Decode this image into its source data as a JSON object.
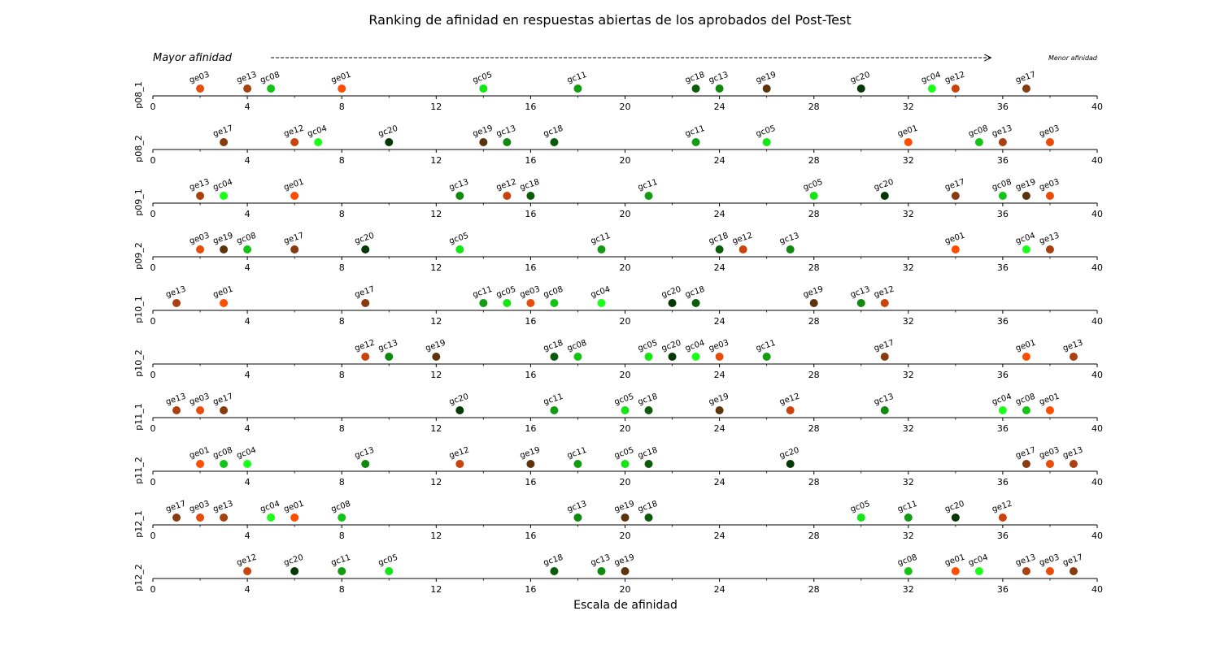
{
  "chart_data": {
    "type": "scatter",
    "title": "Ranking de afinidad en respuestas abiertas de los aprobados del Post-Test",
    "xlabel": "Escala de afinidad",
    "xlim": [
      0,
      40
    ],
    "xticks": [
      0,
      4,
      8,
      12,
      16,
      20,
      24,
      28,
      32,
      36,
      40
    ],
    "arrow": {
      "start_label": "Mayor afinidad",
      "end_label": "Menor afinidad",
      "x_start": 5,
      "x_end": 35.5
    },
    "colors": {
      "ge01": "#ff4d00",
      "ge03": "#e84c0a",
      "ge12": "#c8440c",
      "ge13": "#a8400f",
      "ge17": "#873c10",
      "ge19": "#5c330b",
      "gc04": "#19ff19",
      "gc05": "#14e614",
      "gc08": "#14c414",
      "gc11": "#129c12",
      "gc13": "#0f8a0f",
      "gc18": "#0a5c0a",
      "gc20": "#043804"
    },
    "rows": [
      {
        "label": "p08_1",
        "points": [
          {
            "code": "ge03",
            "x": 2
          },
          {
            "code": "ge13",
            "x": 4
          },
          {
            "code": "gc08",
            "x": 5
          },
          {
            "code": "ge01",
            "x": 8
          },
          {
            "code": "gc05",
            "x": 14
          },
          {
            "code": "gc11",
            "x": 18
          },
          {
            "code": "gc18",
            "x": 23
          },
          {
            "code": "gc13",
            "x": 24
          },
          {
            "code": "ge19",
            "x": 26
          },
          {
            "code": "gc20",
            "x": 30
          },
          {
            "code": "gc04",
            "x": 33
          },
          {
            "code": "ge12",
            "x": 34
          },
          {
            "code": "ge17",
            "x": 37
          }
        ]
      },
      {
        "label": "p08_2",
        "points": [
          {
            "code": "ge17",
            "x": 3
          },
          {
            "code": "ge12",
            "x": 6
          },
          {
            "code": "gc04",
            "x": 7
          },
          {
            "code": "gc20",
            "x": 10
          },
          {
            "code": "ge19",
            "x": 14
          },
          {
            "code": "gc13",
            "x": 15
          },
          {
            "code": "gc18",
            "x": 17
          },
          {
            "code": "gc11",
            "x": 23
          },
          {
            "code": "gc05",
            "x": 26
          },
          {
            "code": "ge01",
            "x": 32
          },
          {
            "code": "gc08",
            "x": 35
          },
          {
            "code": "ge13",
            "x": 36
          },
          {
            "code": "ge03",
            "x": 38
          }
        ]
      },
      {
        "label": "p09_1",
        "points": [
          {
            "code": "ge13",
            "x": 2
          },
          {
            "code": "gc04",
            "x": 3
          },
          {
            "code": "ge01",
            "x": 6
          },
          {
            "code": "gc13",
            "x": 13
          },
          {
            "code": "ge12",
            "x": 15
          },
          {
            "code": "gc18",
            "x": 16
          },
          {
            "code": "gc11",
            "x": 21
          },
          {
            "code": "gc05",
            "x": 28
          },
          {
            "code": "gc20",
            "x": 31
          },
          {
            "code": "ge17",
            "x": 34
          },
          {
            "code": "gc08",
            "x": 36
          },
          {
            "code": "ge19",
            "x": 37
          },
          {
            "code": "ge03",
            "x": 38
          }
        ]
      },
      {
        "label": "p09_2",
        "points": [
          {
            "code": "ge03",
            "x": 2
          },
          {
            "code": "ge19",
            "x": 3
          },
          {
            "code": "gc08",
            "x": 4
          },
          {
            "code": "ge17",
            "x": 6
          },
          {
            "code": "gc20",
            "x": 9
          },
          {
            "code": "gc05",
            "x": 13
          },
          {
            "code": "gc11",
            "x": 19
          },
          {
            "code": "gc18",
            "x": 24
          },
          {
            "code": "ge12",
            "x": 25
          },
          {
            "code": "gc13",
            "x": 27
          },
          {
            "code": "ge01",
            "x": 34
          },
          {
            "code": "gc04",
            "x": 37
          },
          {
            "code": "ge13",
            "x": 38
          }
        ]
      },
      {
        "label": "p10_1",
        "points": [
          {
            "code": "ge13",
            "x": 1
          },
          {
            "code": "ge01",
            "x": 3
          },
          {
            "code": "ge17",
            "x": 9
          },
          {
            "code": "gc11",
            "x": 14
          },
          {
            "code": "gc05",
            "x": 15
          },
          {
            "code": "ge03",
            "x": 16
          },
          {
            "code": "gc08",
            "x": 17
          },
          {
            "code": "gc04",
            "x": 19
          },
          {
            "code": "gc20",
            "x": 22
          },
          {
            "code": "gc18",
            "x": 23
          },
          {
            "code": "ge19",
            "x": 28
          },
          {
            "code": "gc13",
            "x": 30
          },
          {
            "code": "ge12",
            "x": 31
          }
        ]
      },
      {
        "label": "p10_2",
        "points": [
          {
            "code": "ge12",
            "x": 9
          },
          {
            "code": "gc13",
            "x": 10
          },
          {
            "code": "ge19",
            "x": 12
          },
          {
            "code": "gc18",
            "x": 17
          },
          {
            "code": "gc08",
            "x": 18
          },
          {
            "code": "gc05",
            "x": 21
          },
          {
            "code": "gc20",
            "x": 22
          },
          {
            "code": "gc04",
            "x": 23
          },
          {
            "code": "ge03",
            "x": 24
          },
          {
            "code": "gc11",
            "x": 26
          },
          {
            "code": "ge17",
            "x": 31
          },
          {
            "code": "ge01",
            "x": 37
          },
          {
            "code": "ge13",
            "x": 39
          }
        ]
      },
      {
        "label": "p11_1",
        "points": [
          {
            "code": "ge13",
            "x": 1
          },
          {
            "code": "ge03",
            "x": 2
          },
          {
            "code": "ge17",
            "x": 3
          },
          {
            "code": "gc20",
            "x": 13
          },
          {
            "code": "gc11",
            "x": 17
          },
          {
            "code": "gc05",
            "x": 20
          },
          {
            "code": "gc18",
            "x": 21
          },
          {
            "code": "ge19",
            "x": 24
          },
          {
            "code": "ge12",
            "x": 27
          },
          {
            "code": "gc13",
            "x": 31
          },
          {
            "code": "gc04",
            "x": 36
          },
          {
            "code": "gc08",
            "x": 37
          },
          {
            "code": "ge01",
            "x": 38
          }
        ]
      },
      {
        "label": "p11_2",
        "points": [
          {
            "code": "ge01",
            "x": 2
          },
          {
            "code": "gc08",
            "x": 3
          },
          {
            "code": "gc04",
            "x": 4
          },
          {
            "code": "gc13",
            "x": 9
          },
          {
            "code": "ge12",
            "x": 13
          },
          {
            "code": "ge19",
            "x": 16
          },
          {
            "code": "gc11",
            "x": 18
          },
          {
            "code": "gc05",
            "x": 20
          },
          {
            "code": "gc18",
            "x": 21
          },
          {
            "code": "gc20",
            "x": 27
          },
          {
            "code": "ge17",
            "x": 37
          },
          {
            "code": "ge03",
            "x": 38
          },
          {
            "code": "ge13",
            "x": 39
          }
        ]
      },
      {
        "label": "p12_1",
        "points": [
          {
            "code": "ge17",
            "x": 1
          },
          {
            "code": "ge03",
            "x": 2
          },
          {
            "code": "ge13",
            "x": 3
          },
          {
            "code": "gc04",
            "x": 5
          },
          {
            "code": "ge01",
            "x": 6
          },
          {
            "code": "gc08",
            "x": 8
          },
          {
            "code": "gc13",
            "x": 18
          },
          {
            "code": "ge19",
            "x": 20
          },
          {
            "code": "gc18",
            "x": 21
          },
          {
            "code": "gc05",
            "x": 30
          },
          {
            "code": "gc11",
            "x": 32
          },
          {
            "code": "gc20",
            "x": 34
          },
          {
            "code": "ge12",
            "x": 36
          }
        ]
      },
      {
        "label": "p12_2",
        "points": [
          {
            "code": "ge12",
            "x": 4
          },
          {
            "code": "gc20",
            "x": 6
          },
          {
            "code": "gc11",
            "x": 8
          },
          {
            "code": "gc05",
            "x": 10
          },
          {
            "code": "gc18",
            "x": 17
          },
          {
            "code": "gc13",
            "x": 19
          },
          {
            "code": "ge19",
            "x": 20
          },
          {
            "code": "gc08",
            "x": 32
          },
          {
            "code": "ge01",
            "x": 34
          },
          {
            "code": "gc04",
            "x": 35
          },
          {
            "code": "ge13",
            "x": 37
          },
          {
            "code": "ge03",
            "x": 38
          },
          {
            "code": "ge17",
            "x": 39
          }
        ]
      }
    ]
  }
}
